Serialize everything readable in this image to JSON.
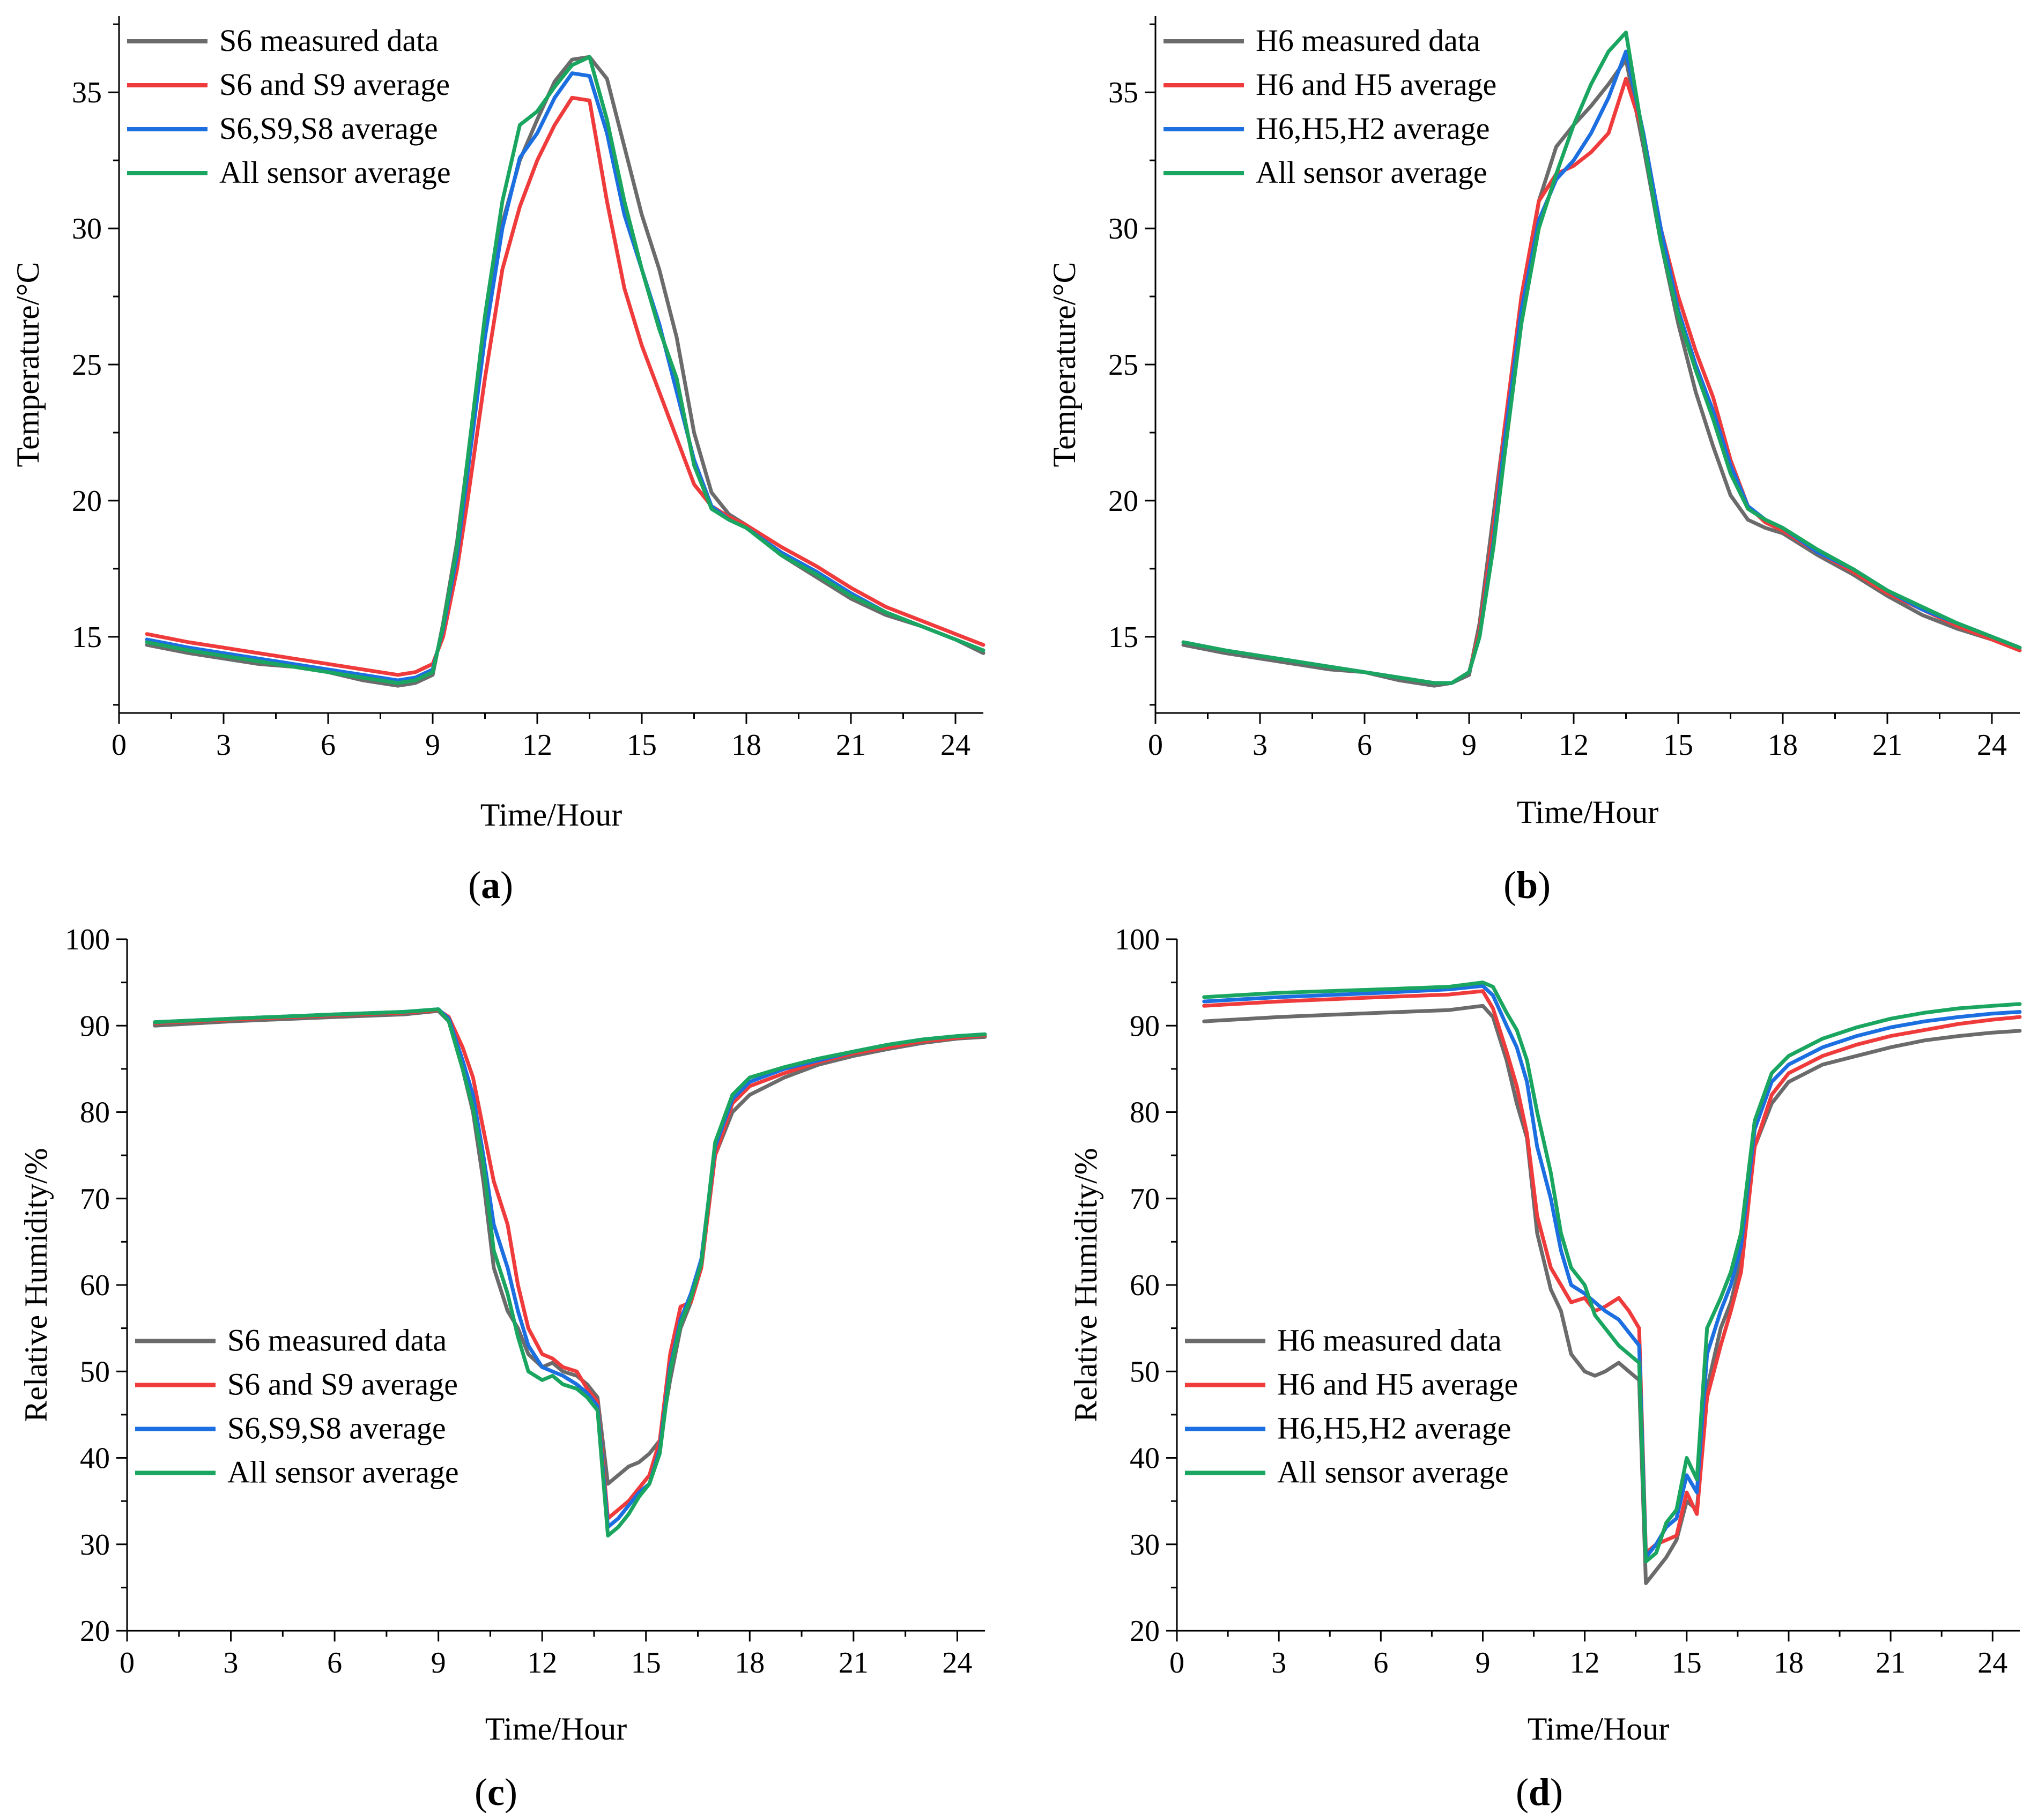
{
  "figure": {
    "panels": [
      "a",
      "b",
      "c",
      "d"
    ]
  },
  "colors": {
    "gray": "#6b6b6b",
    "red": "#ef3b3b",
    "blue": "#1c6fe0",
    "green": "#1aa660"
  },
  "chart_data": [
    {
      "type": "line",
      "panel_label": "a",
      "xlabel": "Time/Hour",
      "ylabel": "Temperature/°C",
      "xlim": [
        0,
        24.8
      ],
      "ylim": [
        12.2,
        37.8
      ],
      "xticks": [
        0,
        3,
        6,
        9,
        12,
        15,
        18,
        21,
        24
      ],
      "yticks": [
        15,
        20,
        25,
        30,
        35
      ],
      "legend_position": "top-left",
      "x": [
        0.8,
        2,
        3,
        4,
        5,
        6,
        7,
        8,
        8.5,
        9,
        9.3,
        9.7,
        10,
        10.5,
        11,
        11.5,
        12,
        12.5,
        13,
        13.5,
        14,
        14.5,
        15,
        15.5,
        16,
        16.5,
        17,
        17.5,
        18,
        19,
        20,
        21,
        22,
        23,
        24,
        24.8
      ],
      "series": [
        {
          "name": "S6 measured data",
          "color": "gray",
          "values": [
            14.7,
            14.4,
            14.2,
            14.0,
            13.9,
            13.7,
            13.4,
            13.2,
            13.3,
            13.6,
            15.5,
            18.5,
            21.5,
            26.5,
            30.2,
            32.5,
            34.0,
            35.4,
            36.2,
            36.3,
            35.5,
            33.0,
            30.5,
            28.5,
            26.0,
            22.5,
            20.3,
            19.5,
            19.1,
            18.0,
            17.2,
            16.4,
            15.8,
            15.4,
            14.9,
            14.4
          ]
        },
        {
          "name": "S6 and S9 average",
          "color": "red",
          "values": [
            15.1,
            14.8,
            14.6,
            14.4,
            14.2,
            14.0,
            13.8,
            13.6,
            13.7,
            14.0,
            15.0,
            17.5,
            20.0,
            24.5,
            28.5,
            30.8,
            32.5,
            33.8,
            34.8,
            34.7,
            31.0,
            27.8,
            25.7,
            24.0,
            22.3,
            20.6,
            19.8,
            19.4,
            19.1,
            18.3,
            17.6,
            16.8,
            16.1,
            15.6,
            15.1,
            14.7
          ]
        },
        {
          "name": "S6,S9,S8 average",
          "color": "blue",
          "values": [
            14.9,
            14.6,
            14.4,
            14.2,
            14.0,
            13.8,
            13.6,
            13.4,
            13.5,
            13.8,
            15.3,
            18.0,
            21.0,
            26.0,
            30.0,
            32.6,
            33.5,
            34.8,
            35.7,
            35.6,
            33.5,
            30.5,
            28.5,
            26.5,
            24.0,
            21.5,
            19.8,
            19.3,
            19.0,
            18.1,
            17.4,
            16.6,
            15.9,
            15.4,
            14.9,
            14.5
          ]
        },
        {
          "name": "All sensor average",
          "color": "green",
          "values": [
            14.8,
            14.5,
            14.3,
            14.1,
            13.9,
            13.7,
            13.5,
            13.3,
            13.4,
            13.7,
            15.4,
            18.3,
            21.5,
            26.8,
            31.0,
            33.8,
            34.3,
            35.2,
            36.0,
            36.3,
            34.0,
            31.0,
            28.5,
            26.3,
            24.5,
            21.3,
            19.7,
            19.3,
            19.0,
            18.0,
            17.3,
            16.5,
            15.9,
            15.4,
            14.9,
            14.5
          ]
        }
      ]
    },
    {
      "type": "line",
      "panel_label": "b",
      "xlabel": "Time/Hour",
      "ylabel": "Temperature/°C",
      "xlim": [
        0,
        24.8
      ],
      "ylim": [
        12.2,
        37.8
      ],
      "xticks": [
        0,
        3,
        6,
        9,
        12,
        15,
        18,
        21,
        24
      ],
      "yticks": [
        15,
        20,
        25,
        30,
        35
      ],
      "legend_position": "top-left",
      "x": [
        0.8,
        2,
        3,
        4,
        5,
        6,
        7,
        8,
        8.5,
        9,
        9.3,
        9.7,
        10,
        10.5,
        11,
        11.5,
        12,
        12.5,
        13,
        13.5,
        14,
        14.5,
        15,
        15.5,
        16,
        16.5,
        17,
        17.5,
        18,
        19,
        20,
        21,
        22,
        23,
        24,
        24.8
      ],
      "series": [
        {
          "name": "H6 measured data",
          "color": "gray",
          "values": [
            14.7,
            14.4,
            14.2,
            14.0,
            13.8,
            13.7,
            13.4,
            13.2,
            13.3,
            13.6,
            15.5,
            19.5,
            22.5,
            27.0,
            31.0,
            33.0,
            33.8,
            34.5,
            35.3,
            36.2,
            33.0,
            29.5,
            26.5,
            24.0,
            22.0,
            20.2,
            19.3,
            19.0,
            18.8,
            18.0,
            17.3,
            16.5,
            15.8,
            15.3,
            14.9,
            14.5
          ]
        },
        {
          "name": "H6 and H5 average",
          "color": "red",
          "values": [
            14.8,
            14.5,
            14.3,
            14.1,
            13.9,
            13.7,
            13.5,
            13.3,
            13.3,
            13.7,
            15.2,
            19.0,
            22.5,
            27.5,
            31.0,
            32.0,
            32.3,
            32.8,
            33.5,
            35.5,
            33.5,
            30.0,
            27.5,
            25.5,
            23.8,
            21.5,
            19.8,
            19.2,
            18.9,
            18.1,
            17.4,
            16.6,
            16.0,
            15.4,
            14.9,
            14.5
          ]
        },
        {
          "name": "H6,H5,H2 average",
          "color": "blue",
          "values": [
            14.8,
            14.5,
            14.3,
            14.1,
            13.9,
            13.7,
            13.5,
            13.3,
            13.3,
            13.7,
            15.0,
            18.5,
            22.0,
            27.0,
            30.3,
            31.8,
            32.5,
            33.5,
            34.8,
            36.5,
            33.5,
            30.0,
            27.0,
            25.0,
            23.3,
            21.3,
            19.8,
            19.3,
            19.0,
            18.1,
            17.5,
            16.7,
            16.0,
            15.5,
            15.0,
            14.6
          ]
        },
        {
          "name": "All sensor average",
          "color": "green",
          "values": [
            14.8,
            14.5,
            14.3,
            14.1,
            13.9,
            13.7,
            13.5,
            13.3,
            13.3,
            13.7,
            15.0,
            18.3,
            21.5,
            26.5,
            30.0,
            32.0,
            33.8,
            35.3,
            36.5,
            37.2,
            33.3,
            29.5,
            26.8,
            24.8,
            23.0,
            21.0,
            19.7,
            19.3,
            19.0,
            18.2,
            17.5,
            16.7,
            16.1,
            15.5,
            15.0,
            14.6
          ]
        }
      ]
    },
    {
      "type": "line",
      "panel_label": "c",
      "xlabel": "Time/Hour",
      "ylabel": "Relative Humidity/%",
      "xlim": [
        0,
        24.8
      ],
      "ylim": [
        20,
        100
      ],
      "xticks": [
        0,
        3,
        6,
        9,
        12,
        15,
        18,
        21,
        24
      ],
      "yticks": [
        20,
        30,
        40,
        50,
        60,
        70,
        80,
        90,
        100
      ],
      "legend_position": "bottom-left",
      "x": [
        0.8,
        3,
        6,
        8,
        9,
        9.3,
        9.7,
        10,
        10.3,
        10.6,
        11,
        11.3,
        11.6,
        12,
        12.3,
        12.6,
        13,
        13.3,
        13.6,
        13.9,
        14.2,
        14.5,
        14.8,
        15.1,
        15.4,
        15.7,
        16,
        16.3,
        16.6,
        17,
        17.5,
        18,
        19,
        20,
        21,
        22,
        23,
        24,
        24.8
      ],
      "series": [
        {
          "name": "S6 measured data",
          "color": "gray",
          "values": [
            90.0,
            90.5,
            91.0,
            91.3,
            91.7,
            90.5,
            85.0,
            80.0,
            72.0,
            62.0,
            57.0,
            55.0,
            52.0,
            50.5,
            51.0,
            50.0,
            49.5,
            48.5,
            47.0,
            37.0,
            38.0,
            39.0,
            39.5,
            40.5,
            42.0,
            49.0,
            55.0,
            58.0,
            62.0,
            75.0,
            80.0,
            82.0,
            84.0,
            85.5,
            86.5,
            87.3,
            88.0,
            88.5,
            88.7
          ]
        },
        {
          "name": "S6 and S9 average",
          "color": "red",
          "values": [
            90.3,
            90.7,
            91.2,
            91.5,
            91.8,
            91.0,
            87.5,
            84.0,
            78.0,
            72.0,
            67.0,
            60.0,
            55.0,
            52.0,
            51.5,
            50.5,
            50.0,
            48.0,
            46.5,
            33.0,
            34.0,
            35.0,
            36.5,
            38.0,
            42.0,
            52.0,
            57.5,
            58.0,
            62.0,
            75.0,
            81.0,
            83.0,
            84.5,
            85.8,
            86.8,
            87.5,
            88.2,
            88.6,
            88.9
          ]
        },
        {
          "name": "S6,S9,S8 average",
          "color": "blue",
          "values": [
            90.4,
            90.8,
            91.3,
            91.6,
            91.9,
            90.8,
            86.0,
            82.0,
            75.0,
            67.0,
            62.0,
            57.0,
            53.0,
            50.5,
            50.0,
            49.5,
            48.5,
            47.5,
            46.0,
            32.0,
            33.0,
            34.5,
            36.0,
            37.0,
            41.0,
            50.5,
            56.0,
            59.0,
            63.0,
            76.0,
            81.5,
            83.5,
            85.0,
            86.0,
            87.0,
            87.8,
            88.4,
            88.8,
            89.0
          ]
        },
        {
          "name": "All sensor average",
          "color": "green",
          "values": [
            90.4,
            90.8,
            91.3,
            91.6,
            91.9,
            90.5,
            85.0,
            80.5,
            74.0,
            64.0,
            59.0,
            54.0,
            50.0,
            49.0,
            49.5,
            48.5,
            48.0,
            47.0,
            45.5,
            31.0,
            32.0,
            33.5,
            35.5,
            37.0,
            40.5,
            50.0,
            55.5,
            58.5,
            62.5,
            76.5,
            82.0,
            84.0,
            85.2,
            86.2,
            87.0,
            87.8,
            88.4,
            88.8,
            89.0
          ]
        }
      ]
    },
    {
      "type": "line",
      "panel_label": "d",
      "xlabel": "Time/Hour",
      "ylabel": "Relative Humidity/%",
      "xlim": [
        0,
        24.8
      ],
      "ylim": [
        20,
        100
      ],
      "xticks": [
        0,
        3,
        6,
        9,
        12,
        15,
        18,
        21,
        24
      ],
      "yticks": [
        20,
        30,
        40,
        50,
        60,
        70,
        80,
        90,
        100
      ],
      "legend_position": "bottom-left",
      "x": [
        0.8,
        3,
        6,
        8,
        9,
        9.3,
        9.7,
        10,
        10.3,
        10.6,
        11,
        11.3,
        11.6,
        12,
        12.3,
        12.6,
        13,
        13.3,
        13.6,
        13.8,
        14.1,
        14.4,
        14.7,
        15,
        15.3,
        15.6,
        16,
        16.3,
        16.6,
        17,
        17.5,
        18,
        19,
        20,
        21,
        22,
        23,
        24,
        24.8
      ],
      "series": [
        {
          "name": "H6 measured data",
          "color": "gray",
          "values": [
            90.5,
            91.0,
            91.5,
            91.8,
            92.3,
            91.0,
            86.0,
            81.0,
            77.0,
            66.0,
            59.5,
            57.0,
            52.0,
            50.0,
            49.5,
            50.0,
            51.0,
            50.0,
            49.0,
            25.5,
            27.0,
            28.5,
            30.5,
            35.0,
            34.0,
            48.0,
            55.0,
            58.0,
            63.0,
            76.0,
            81.0,
            83.5,
            85.5,
            86.5,
            87.5,
            88.3,
            88.8,
            89.2,
            89.4
          ]
        },
        {
          "name": "H6 and H5 average",
          "color": "red",
          "values": [
            92.3,
            92.8,
            93.3,
            93.6,
            94.0,
            92.0,
            87.0,
            83.0,
            77.5,
            68.0,
            62.0,
            60.0,
            58.0,
            58.5,
            57.0,
            57.5,
            58.5,
            57.0,
            55.0,
            29.0,
            30.0,
            30.5,
            31.0,
            36.0,
            33.5,
            47.0,
            53.0,
            57.0,
            61.5,
            76.0,
            82.0,
            84.5,
            86.5,
            87.8,
            88.8,
            89.5,
            90.2,
            90.7,
            91.0
          ]
        },
        {
          "name": "H6,H5,H2 average",
          "color": "blue",
          "values": [
            92.8,
            93.3,
            93.8,
            94.2,
            94.6,
            93.5,
            90.0,
            87.5,
            83.5,
            76.0,
            70.0,
            64.0,
            60.0,
            59.0,
            58.0,
            57.0,
            56.0,
            54.5,
            53.0,
            28.5,
            30.0,
            32.0,
            33.0,
            38.0,
            36.0,
            52.0,
            57.0,
            60.0,
            64.5,
            78.0,
            83.5,
            85.5,
            87.5,
            88.8,
            89.8,
            90.5,
            91.0,
            91.4,
            91.6
          ]
        },
        {
          "name": "All sensor average",
          "color": "green",
          "values": [
            93.3,
            93.8,
            94.2,
            94.5,
            95.0,
            94.5,
            91.5,
            89.5,
            86.0,
            80.0,
            73.0,
            66.0,
            62.0,
            60.0,
            56.5,
            55.0,
            53.0,
            52.0,
            51.0,
            28.0,
            29.0,
            32.5,
            34.0,
            40.0,
            37.5,
            55.0,
            58.5,
            61.5,
            66.0,
            79.0,
            84.5,
            86.5,
            88.5,
            89.8,
            90.8,
            91.5,
            92.0,
            92.3,
            92.5
          ]
        }
      ]
    }
  ]
}
